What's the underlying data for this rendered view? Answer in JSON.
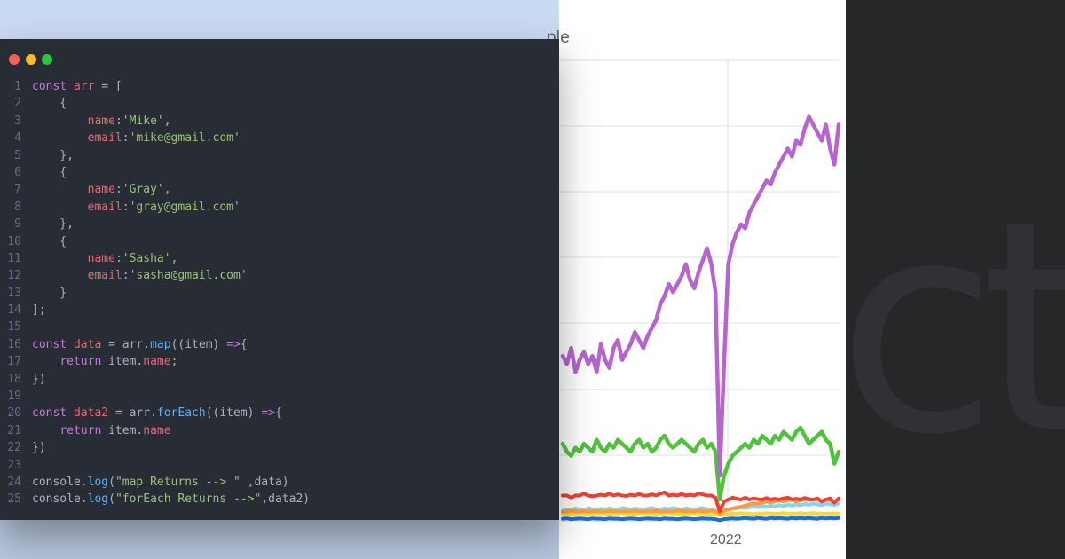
{
  "window": {
    "traffic_lights": [
      "close",
      "minimize",
      "maximize"
    ],
    "colors": {
      "close": "#ff5f56",
      "minimize": "#ffbd2e",
      "maximize": "#27c93f",
      "background": "#282c34"
    }
  },
  "code": {
    "lines": [
      {
        "n": "1",
        "tokens": [
          {
            "t": "const ",
            "c": "kw"
          },
          {
            "t": "arr",
            "c": "prop"
          },
          {
            "t": " = [",
            "c": "pl"
          }
        ]
      },
      {
        "n": "2",
        "tokens": [
          {
            "t": "    {",
            "c": "pl"
          }
        ]
      },
      {
        "n": "3",
        "tokens": [
          {
            "t": "        ",
            "c": "pl"
          },
          {
            "t": "name",
            "c": "prop"
          },
          {
            "t": ":",
            "c": "pl"
          },
          {
            "t": "'Mike'",
            "c": "str"
          },
          {
            "t": ",",
            "c": "pl"
          }
        ]
      },
      {
        "n": "4",
        "tokens": [
          {
            "t": "        ",
            "c": "pl"
          },
          {
            "t": "email",
            "c": "prop"
          },
          {
            "t": ":",
            "c": "pl"
          },
          {
            "t": "'mike@gmail.com'",
            "c": "str"
          }
        ]
      },
      {
        "n": "5",
        "tokens": [
          {
            "t": "    },",
            "c": "pl"
          }
        ]
      },
      {
        "n": "6",
        "tokens": [
          {
            "t": "    {",
            "c": "pl"
          }
        ]
      },
      {
        "n": "7",
        "tokens": [
          {
            "t": "        ",
            "c": "pl"
          },
          {
            "t": "name",
            "c": "prop"
          },
          {
            "t": ":",
            "c": "pl"
          },
          {
            "t": "'Gray'",
            "c": "str"
          },
          {
            "t": ",",
            "c": "pl"
          }
        ]
      },
      {
        "n": "8",
        "tokens": [
          {
            "t": "        ",
            "c": "pl"
          },
          {
            "t": "email",
            "c": "prop"
          },
          {
            "t": ":",
            "c": "pl"
          },
          {
            "t": "'gray@gmail.com'",
            "c": "str"
          }
        ]
      },
      {
        "n": "9",
        "tokens": [
          {
            "t": "    },",
            "c": "pl"
          }
        ]
      },
      {
        "n": "10",
        "tokens": [
          {
            "t": "    {",
            "c": "pl"
          }
        ]
      },
      {
        "n": "11",
        "tokens": [
          {
            "t": "        ",
            "c": "pl"
          },
          {
            "t": "name",
            "c": "prop"
          },
          {
            "t": ":",
            "c": "pl"
          },
          {
            "t": "'Sasha'",
            "c": "str"
          },
          {
            "t": ",",
            "c": "pl"
          }
        ]
      },
      {
        "n": "12",
        "tokens": [
          {
            "t": "        ",
            "c": "pl"
          },
          {
            "t": "email",
            "c": "prop"
          },
          {
            "t": ":",
            "c": "pl"
          },
          {
            "t": "'sasha@gmail.com'",
            "c": "str"
          }
        ]
      },
      {
        "n": "13",
        "tokens": [
          {
            "t": "    }",
            "c": "pl"
          }
        ]
      },
      {
        "n": "14",
        "tokens": [
          {
            "t": "];",
            "c": "pl"
          }
        ]
      },
      {
        "n": "15",
        "tokens": []
      },
      {
        "n": "16",
        "tokens": [
          {
            "t": "const ",
            "c": "kw"
          },
          {
            "t": "data",
            "c": "prop"
          },
          {
            "t": " = ",
            "c": "pl"
          },
          {
            "t": "arr",
            "c": "pl"
          },
          {
            "t": ".",
            "c": "pl"
          },
          {
            "t": "map",
            "c": "fn"
          },
          {
            "t": "((item) ",
            "c": "pl"
          },
          {
            "t": "=>",
            "c": "kw"
          },
          {
            "t": "{",
            "c": "pl"
          }
        ]
      },
      {
        "n": "17",
        "tokens": [
          {
            "t": "    ",
            "c": "pl"
          },
          {
            "t": "return ",
            "c": "kw"
          },
          {
            "t": "item.",
            "c": "pl"
          },
          {
            "t": "name",
            "c": "prop"
          },
          {
            "t": ";",
            "c": "pl"
          }
        ]
      },
      {
        "n": "18",
        "tokens": [
          {
            "t": "})",
            "c": "pl"
          }
        ]
      },
      {
        "n": "19",
        "tokens": []
      },
      {
        "n": "20",
        "tokens": [
          {
            "t": "const ",
            "c": "kw"
          },
          {
            "t": "data2",
            "c": "prop"
          },
          {
            "t": " = ",
            "c": "pl"
          },
          {
            "t": "arr",
            "c": "pl"
          },
          {
            "t": ".",
            "c": "pl"
          },
          {
            "t": "forEach",
            "c": "fn"
          },
          {
            "t": "((item) ",
            "c": "pl"
          },
          {
            "t": "=>",
            "c": "kw"
          },
          {
            "t": "{",
            "c": "pl"
          }
        ]
      },
      {
        "n": "21",
        "tokens": [
          {
            "t": "    ",
            "c": "pl"
          },
          {
            "t": "return ",
            "c": "kw"
          },
          {
            "t": "item.",
            "c": "pl"
          },
          {
            "t": "name",
            "c": "prop"
          }
        ]
      },
      {
        "n": "22",
        "tokens": [
          {
            "t": "})",
            "c": "pl"
          }
        ]
      },
      {
        "n": "23",
        "tokens": []
      },
      {
        "n": "24",
        "tokens": [
          {
            "t": "console",
            "c": "pl"
          },
          {
            "t": ".",
            "c": "pl"
          },
          {
            "t": "log",
            "c": "fn"
          },
          {
            "t": "(",
            "c": "pl"
          },
          {
            "t": "\"map Returns --> \"",
            "c": "str"
          },
          {
            "t": " ,data)",
            "c": "pl"
          }
        ]
      },
      {
        "n": "25",
        "tokens": [
          {
            "t": "console",
            "c": "pl"
          },
          {
            "t": ".",
            "c": "pl"
          },
          {
            "t": "log",
            "c": "fn"
          },
          {
            "t": "(",
            "c": "pl"
          },
          {
            "t": "\"forEach Returns -->\"",
            "c": "str"
          },
          {
            "t": ",data2)",
            "c": "pl"
          }
        ]
      }
    ]
  },
  "chart": {
    "title_fragment": "ple",
    "x_tick": "2022",
    "watermark": "ct"
  },
  "chart_data": {
    "type": "line",
    "title": "",
    "xlabel": "",
    "ylabel": "",
    "x_ticks": [
      "2022"
    ],
    "grid": true,
    "series": [
      {
        "color": "#b565cc",
        "values": [
          42,
          40,
          44,
          38,
          41,
          43,
          40,
          42,
          38,
          45,
          41,
          39,
          44,
          46,
          41,
          43,
          45,
          48,
          46,
          44,
          47,
          49,
          51,
          55,
          57,
          60,
          58,
          60,
          62,
          65,
          61,
          59,
          63,
          66,
          69,
          65,
          58,
          12,
          40,
          65,
          70,
          73,
          75,
          74,
          78,
          80,
          82,
          84,
          86,
          85,
          88,
          90,
          92,
          94,
          92,
          96,
          95,
          99,
          102,
          100,
          98,
          96,
          100,
          94,
          90,
          100
        ]
      },
      {
        "color": "#52c23e",
        "values": [
          20,
          18,
          17,
          19,
          18,
          20,
          19,
          18,
          21,
          19,
          18,
          20,
          19,
          21,
          20,
          19,
          18,
          20,
          21,
          19,
          20,
          18,
          19,
          21,
          22,
          20,
          19,
          20,
          21,
          20,
          19,
          18,
          20,
          21,
          19,
          20,
          18,
          6,
          12,
          15,
          17,
          18,
          19,
          20,
          19,
          21,
          20,
          22,
          21,
          20,
          22,
          21,
          23,
          22,
          21,
          23,
          24,
          22,
          20,
          21,
          22,
          23,
          21,
          20,
          15,
          18
        ]
      },
      {
        "color": "#e84335",
        "values": [
          7,
          7,
          6.5,
          7,
          7,
          7.5,
          7,
          6.8,
          7,
          7.2,
          7,
          7.5,
          7,
          7.3,
          7,
          6.9,
          7.2,
          7,
          7.4,
          7,
          7,
          7.3,
          7,
          7.5,
          7.8,
          7,
          7.2,
          7,
          7.4,
          7,
          7.2,
          7,
          7.5,
          7.3,
          7,
          7,
          6.5,
          3,
          5.5,
          6,
          6.5,
          6.2,
          6,
          6.5,
          6,
          6.3,
          6.1,
          6,
          6.4,
          6,
          6.2,
          6,
          6.3,
          6.5,
          6,
          6.2,
          6,
          6.4,
          6.1,
          6,
          6.3,
          5.5,
          6,
          6.3,
          5.2,
          6.3
        ]
      },
      {
        "color": "#ff9b3d",
        "values": [
          3,
          3,
          3.2,
          3,
          3,
          3.1,
          3,
          3,
          3.1,
          3,
          3,
          3.2,
          3.1,
          3,
          3,
          3.1,
          3,
          3.2,
          3,
          3,
          3.1,
          3,
          3.2,
          3,
          3,
          3.1,
          3,
          3.3,
          3.2,
          3,
          3.1,
          3,
          3.2,
          3.1,
          3,
          3.3,
          3,
          2.5,
          3.2,
          3.5,
          3.8,
          4,
          4.2,
          4.5,
          4.8,
          5,
          5,
          5.2,
          5.5,
          5.3,
          5.5,
          5.8,
          5.5,
          5.8,
          6,
          5.5,
          5.8,
          6,
          5.9,
          6,
          6.1,
          5.5,
          6,
          5.8,
          5.5,
          6
        ]
      },
      {
        "color": "#fdd835",
        "values": [
          2.5,
          2.5,
          2.4,
          2.5,
          2.6,
          2.5,
          2.4,
          2.5,
          2.5,
          2.6,
          2.5,
          2.4,
          2.5,
          2.5,
          2.6,
          2.5,
          2.5,
          2.4,
          2.5,
          2.6,
          2.5,
          2.5,
          2.4,
          2.5,
          2.5,
          2.6,
          2.5,
          2.5,
          2.4,
          2.5,
          2.5,
          2.6,
          2.5,
          2.5,
          2.5,
          2.4,
          2.3,
          2,
          2.3,
          2.4,
          2.5,
          2.5,
          2.6,
          2.5,
          2.5,
          2.4,
          2.5,
          2.5,
          2.6,
          2.5,
          2.5,
          2.5,
          2.6,
          2.5,
          2.5,
          2.5,
          2.6,
          2.5,
          2.5,
          2.6,
          2.5,
          2.5,
          2.5,
          2.5,
          2.5,
          2.5
        ]
      },
      {
        "color": "#7fd6f5",
        "values": [
          3.2,
          3.6,
          3.4,
          3.8,
          3.5,
          3.3,
          3.9,
          3.6,
          3.4,
          3.7,
          3.5,
          3.8,
          3.6,
          3.4,
          3.9,
          3.7,
          3.5,
          3.8,
          3.6,
          3.4,
          3.7,
          3.9,
          3.6,
          3.5,
          3.8,
          3.6,
          3.9,
          3.7,
          3.5,
          3.8,
          3.6,
          3.4,
          3.7,
          3.9,
          3.6,
          3.5,
          3.2,
          2.6,
          3.2,
          3.5,
          3.7,
          3.8,
          4,
          3.9,
          4.1,
          4.3,
          4.1,
          4.4,
          4.2,
          4.5,
          4.3,
          4.6,
          4.4,
          4.7,
          4.5,
          4.8,
          4.6,
          4.9,
          4.7,
          5,
          4.8,
          4.6,
          5,
          4.8,
          4.7,
          5
        ]
      },
      {
        "color": "#1a6fd1",
        "values": [
          1.2,
          1.3,
          1.1,
          1.2,
          1.3,
          1.2,
          1.1,
          1.3,
          1.2,
          1.2,
          1.1,
          1.3,
          1.2,
          1.2,
          1.1,
          1.2,
          1.3,
          1.2,
          1.1,
          1.2,
          1.3,
          1.2,
          1.2,
          1.1,
          1.3,
          1.2,
          1.2,
          1.1,
          1.2,
          1.3,
          1.2,
          1.1,
          1.2,
          1.3,
          1.2,
          1.2,
          1.1,
          0.8,
          1.1,
          1.2,
          1.3,
          1.2,
          1.3,
          1.4,
          1.3,
          1.2,
          1.4,
          1.3,
          1.2,
          1.4,
          1.3,
          1.4,
          1.3,
          1.2,
          1.4,
          1.3,
          1.4,
          1.3,
          1.4,
          1.3,
          1.2,
          1.4,
          1.3,
          1.4,
          1.3,
          1.4
        ]
      }
    ]
  }
}
